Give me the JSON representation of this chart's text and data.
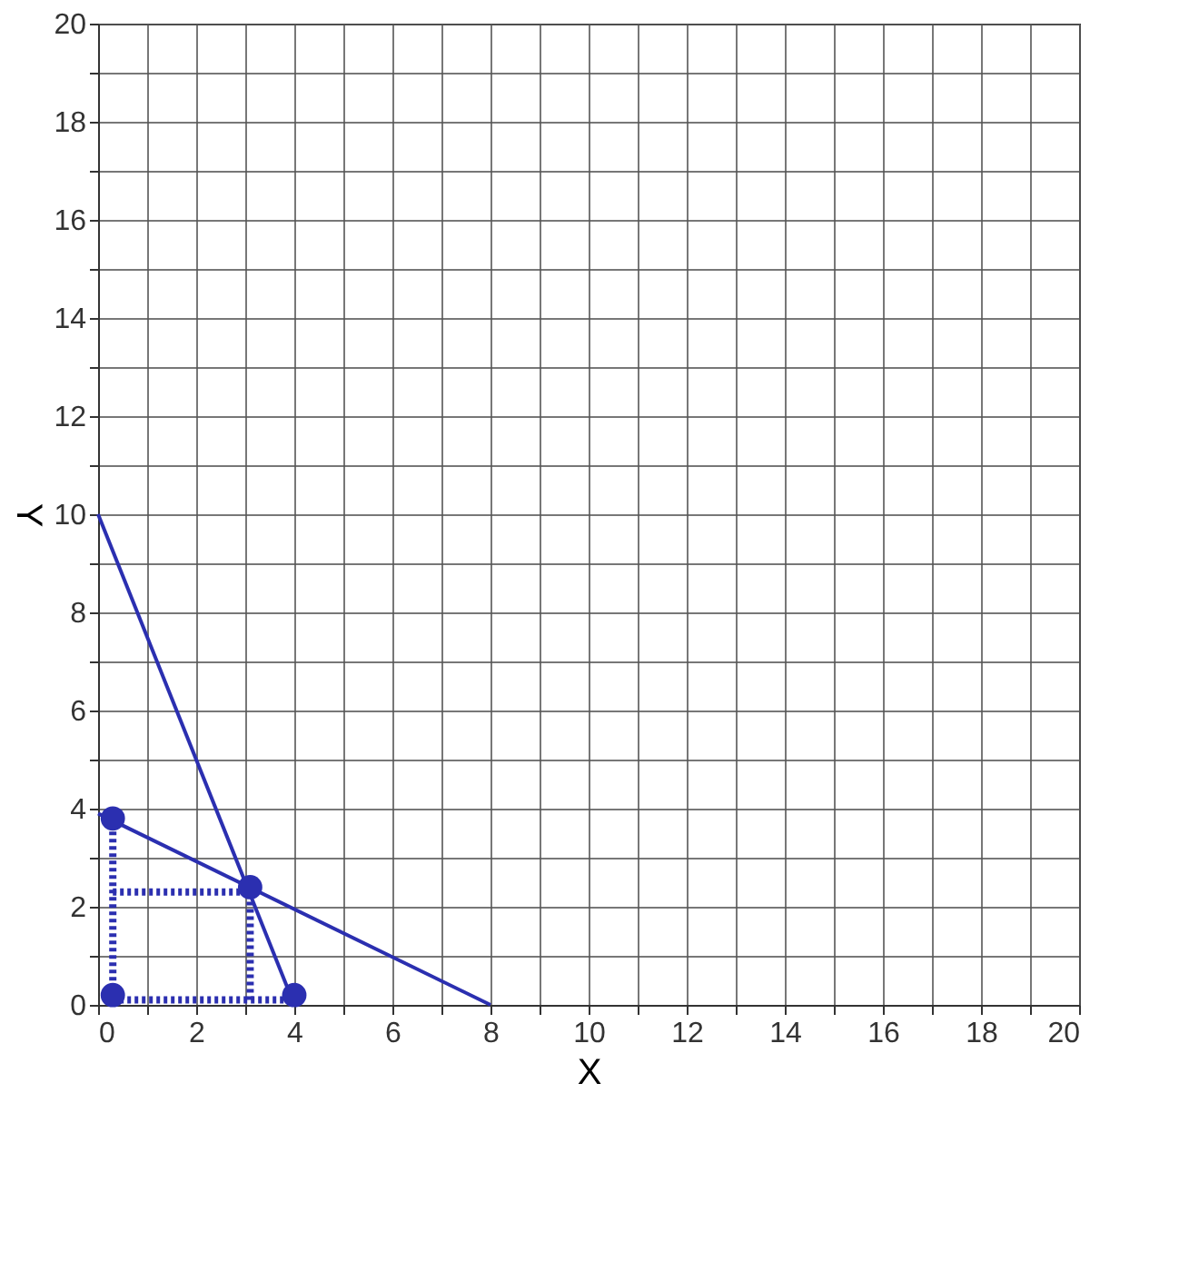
{
  "chart_data": {
    "type": "line",
    "xlabel": "X",
    "ylabel": "Y",
    "xlim": [
      0,
      20
    ],
    "ylim": [
      0,
      20
    ],
    "xticks": [
      0,
      {
        "value": 1,
        "label": null
      },
      2,
      {
        "value": 3,
        "label": null
      },
      4,
      {
        "value": 5,
        "label": null
      },
      6,
      {
        "value": 7,
        "label": null
      },
      8,
      {
        "value": 9,
        "label": null
      },
      10,
      {
        "value": 11,
        "label": null
      },
      12,
      {
        "value": 13,
        "label": null
      },
      14,
      {
        "value": 15,
        "label": null
      },
      16,
      {
        "value": 17,
        "label": null
      },
      18,
      {
        "value": 19,
        "label": null
      },
      20
    ],
    "yticks": [
      0,
      {
        "value": 1,
        "label": null
      },
      2,
      {
        "value": 3,
        "label": null
      },
      4,
      {
        "value": 5,
        "label": null
      },
      6,
      {
        "value": 7,
        "label": null
      },
      8,
      {
        "value": 9,
        "label": null
      },
      10,
      {
        "value": 11,
        "label": null
      },
      12,
      {
        "value": 13,
        "label": null
      },
      14,
      {
        "value": 15,
        "label": null
      },
      16,
      {
        "value": 17,
        "label": null
      },
      18,
      {
        "value": 19,
        "label": null
      },
      20
    ],
    "grid": true,
    "series": [
      {
        "color": "#2b2fb0",
        "x": [
          0,
          4
        ],
        "values": [
          10,
          0
        ],
        "line_style": "solid"
      },
      {
        "color": "#2b2fb0",
        "x": [
          0,
          8
        ],
        "values": [
          3.9,
          0
        ],
        "line_style": "solid"
      },
      {
        "color": "#2b2fb0",
        "x": [
          0.3,
          0.3
        ],
        "values": [
          0.2,
          3.8
        ],
        "line_style": "dotted"
      },
      {
        "color": "#2b2fb0",
        "x": [
          0.3,
          3.1
        ],
        "values": [
          2.3,
          2.3
        ],
        "line_style": "dotted"
      },
      {
        "color": "#2b2fb0",
        "x": [
          0.3,
          4
        ],
        "values": [
          0.1,
          0.1
        ],
        "line_style": "dotted"
      },
      {
        "color": "#2b2fb0",
        "x": [
          3.1,
          3.1
        ],
        "values": [
          0.1,
          2.4
        ],
        "line_style": "dotted"
      },
      {
        "type": "scatter",
        "color": "#2b2fb0",
        "x": [
          0.3,
          0.3,
          3.1,
          4
        ],
        "values": [
          0.2,
          3.8,
          2.4,
          0.2
        ],
        "marker": "circle"
      }
    ]
  }
}
